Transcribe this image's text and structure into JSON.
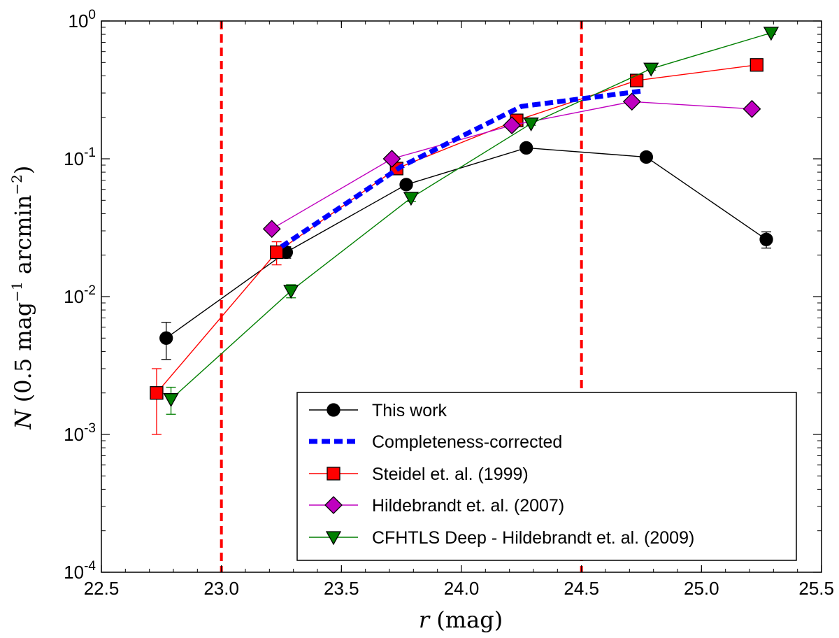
{
  "chart_data": {
    "type": "line",
    "title": "",
    "xlabel_var": "r",
    "xlabel_unit": " (mag)",
    "ylabel_var": "N",
    "ylabel_unit": " (0.5 mag",
    "ylabel_unit2": " arcmin",
    "ylabel_sup": "−1",
    "ylabel_sup2": "−2",
    "ylabel_close": ")",
    "xlim": [
      22.5,
      25.5
    ],
    "ylim": [
      0.0001,
      1
    ],
    "yscale": "log",
    "x_ticks": [
      "22.5",
      "23.0",
      "23.5",
      "24.0",
      "24.5",
      "25.0",
      "25.5"
    ],
    "y_ticks": [
      {
        "value": 0.0001,
        "base": "10",
        "exp": "-4"
      },
      {
        "value": 0.001,
        "base": "10",
        "exp": "-3"
      },
      {
        "value": 0.01,
        "base": "10",
        "exp": "-2"
      },
      {
        "value": 0.1,
        "base": "10",
        "exp": "-1"
      },
      {
        "value": 1,
        "base": "10",
        "exp": "0"
      }
    ],
    "vlines": [
      23.0,
      24.5
    ],
    "vline_color": "#ff0000",
    "legend_position": "lower-right",
    "series": [
      {
        "name": "This work",
        "color": "#000000",
        "marker_fill": "#000000",
        "marker": "circle",
        "linestyle": "solid",
        "x": [
          22.77,
          23.27,
          23.77,
          24.27,
          24.77,
          25.27
        ],
        "y": [
          0.005,
          0.021,
          0.065,
          0.12,
          0.103,
          0.026
        ],
        "yerr_low": [
          0.0035,
          0.019,
          0.061,
          0.115,
          0.099,
          0.0225
        ],
        "yerr_high": [
          0.0065,
          0.023,
          0.069,
          0.125,
          0.107,
          0.0295
        ]
      },
      {
        "name": "Completeness-corrected",
        "color": "#0000ff",
        "marker": "none",
        "linestyle": "dashed",
        "x": [
          23.25,
          23.75,
          24.25,
          24.75
        ],
        "y": [
          0.023,
          0.088,
          0.24,
          0.31
        ]
      },
      {
        "name": "Steidel et. al. (1999)",
        "color": "#ff0000",
        "marker_fill": "#ff0000",
        "marker": "square",
        "linestyle": "solid",
        "x": [
          22.73,
          23.23,
          23.73,
          24.23,
          24.73,
          25.23
        ],
        "y": [
          0.002,
          0.021,
          0.085,
          0.19,
          0.37,
          0.48
        ],
        "yerr_low": [
          0.001,
          0.017,
          0.078,
          0.18,
          0.36,
          0.47
        ],
        "yerr_high": [
          0.003,
          0.025,
          0.092,
          0.2,
          0.38,
          0.49
        ]
      },
      {
        "name": "Hildebrandt et. al. (2007)",
        "color": "#bf00bf",
        "marker_fill": "#bf00bf",
        "marker": "diamond",
        "linestyle": "solid",
        "x": [
          23.21,
          23.71,
          24.21,
          24.71,
          25.21
        ],
        "y": [
          0.031,
          0.1,
          0.175,
          0.26,
          0.23
        ]
      },
      {
        "name": "CFHTLS Deep - Hildebrandt et. al. (2009)",
        "color": "#007f00",
        "marker_fill": "#007f00",
        "marker": "triangle-down",
        "linestyle": "solid",
        "x": [
          22.79,
          23.29,
          23.79,
          24.29,
          24.79,
          25.29
        ],
        "y": [
          0.0018,
          0.011,
          0.052,
          0.18,
          0.45,
          0.82
        ],
        "yerr_low": [
          0.0014,
          0.0098,
          0.049,
          0.175,
          0.44,
          0.8
        ],
        "yerr_high": [
          0.0022,
          0.0122,
          0.055,
          0.185,
          0.46,
          0.84
        ]
      }
    ]
  }
}
